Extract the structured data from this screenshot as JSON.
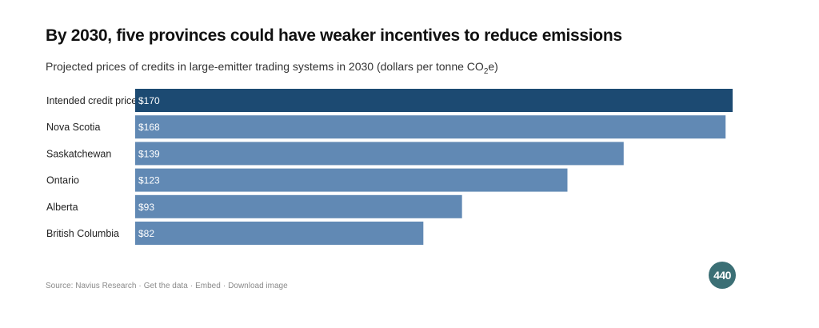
{
  "title": "By 2030, five provinces could have weaker incentives to reduce emissions",
  "subtitle_prefix": "Projected prices of credits in large-emitter trading systems in 2030 (dollars per tonne CO",
  "subtitle_sub": "2",
  "subtitle_suffix": "e)",
  "chart_data": {
    "type": "bar",
    "orientation": "horizontal",
    "categories": [
      "Intended credit price",
      "Nova Scotia",
      "Saskatchewan",
      "Ontario",
      "Alberta",
      "British Columbia"
    ],
    "values": [
      170,
      168,
      139,
      123,
      93,
      82
    ],
    "value_labels": [
      "$170",
      "$168",
      "$139",
      "$123",
      "$93",
      "$82"
    ],
    "xlim": [
      0,
      170
    ],
    "grid": false,
    "colors": {
      "highlight": "#1c4a72",
      "default": "#6189b4"
    }
  },
  "footer": {
    "source": "Source: Navius Research",
    "separator": "·",
    "get_data": "Get the data",
    "embed": "Embed",
    "download": "Download image"
  },
  "logo_text": "440"
}
